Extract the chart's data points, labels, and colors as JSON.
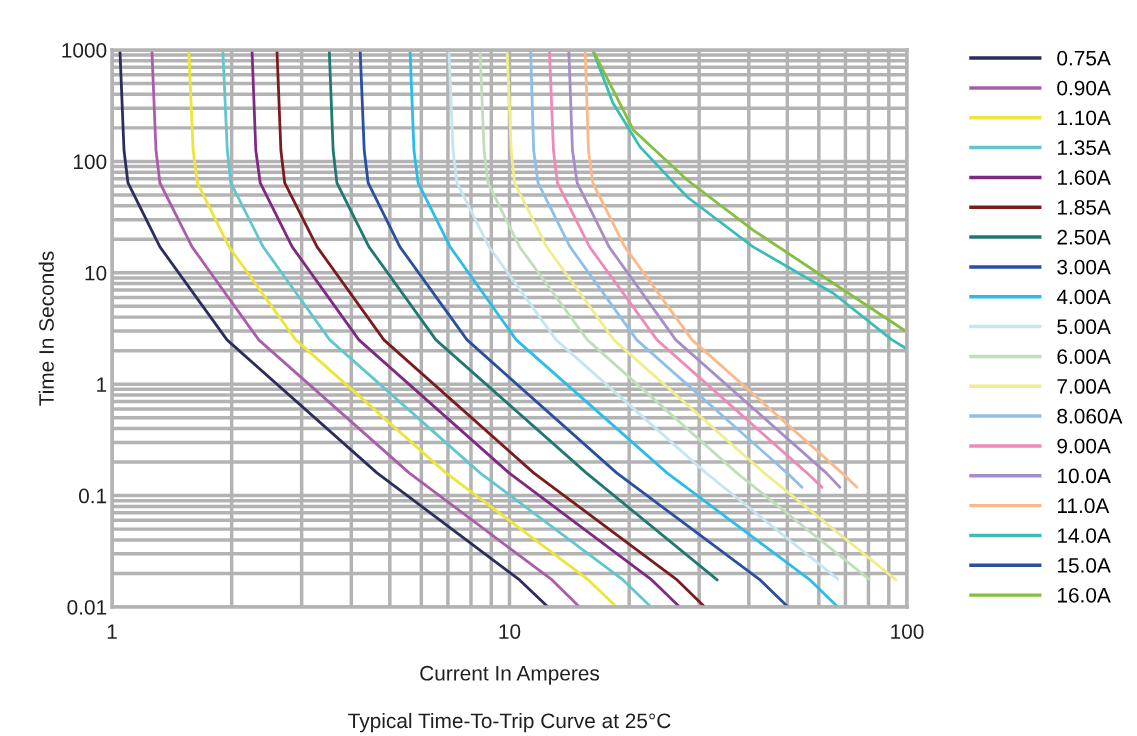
{
  "chart_data": {
    "type": "line",
    "title": "Typical Time-To-Trip Curve at 25°C",
    "xlabel": "Current In Amperes",
    "ylabel": "Time In Seconds",
    "log": "xy",
    "grid": true,
    "legend": "right",
    "marker": "none",
    "line_style": "solid",
    "xlim": [
      1,
      100
    ],
    "xticks": [
      1,
      10,
      100
    ],
    "ylim": [
      0.01,
      1000
    ],
    "yticks": [
      0.01,
      0.1,
      1,
      10,
      100,
      1000
    ],
    "series": [
      {
        "name": "0.75A",
        "color": "#2b2d5e",
        "x": [
          1.047,
          1.072,
          1.097,
          1.32,
          1.947,
          4.64,
          10.6,
          12.5
        ],
        "values": [
          1000,
          126,
          64,
          17.1,
          2.5,
          0.16,
          0.0175,
          0.01
        ]
      },
      {
        "name": "0.90A",
        "color": "#a95dab",
        "x": [
          1.26,
          1.29,
          1.32,
          1.59,
          2.34,
          5.59,
          12.8,
          15.0
        ],
        "values": [
          1000,
          126,
          64,
          17.1,
          2.5,
          0.16,
          0.0175,
          0.01
        ]
      },
      {
        "name": "1.10A",
        "color": "#ede53a",
        "x": [
          1.56,
          1.6,
          1.64,
          1.97,
          2.9,
          6.92,
          15.8,
          18.6
        ],
        "values": [
          1000,
          126,
          64,
          17.1,
          2.5,
          0.16,
          0.0175,
          0.01
        ]
      },
      {
        "name": "1.35A",
        "color": "#62c6cf",
        "x": [
          1.9,
          1.95,
          1.99,
          2.4,
          3.53,
          8.43,
          19.3,
          22.7
        ],
        "values": [
          1000,
          126,
          64,
          17.1,
          2.5,
          0.16,
          0.0175,
          0.01
        ]
      },
      {
        "name": "1.60A",
        "color": "#7f2a82",
        "x": [
          2.25,
          2.3,
          2.36,
          2.84,
          4.18,
          9.97,
          22.8,
          26.8
        ],
        "values": [
          1000,
          126,
          64,
          17.1,
          2.5,
          0.16,
          0.0175,
          0.01
        ]
      },
      {
        "name": "1.85A",
        "color": "#7a1c1f",
        "x": [
          2.6,
          2.66,
          2.72,
          3.28,
          4.83,
          11.5,
          26.4,
          31.0
        ],
        "values": [
          1000,
          126,
          64,
          17.1,
          2.5,
          0.16,
          0.0175,
          0.01
        ]
      },
      {
        "name": "2.50A",
        "color": "#21786f",
        "x": [
          3.52,
          3.6,
          3.68,
          4.43,
          6.53,
          15.6,
          33.3
        ],
        "values": [
          1000,
          126,
          64,
          17.1,
          2.5,
          0.16,
          0.0175
        ]
      },
      {
        "name": "3.00A",
        "color": "#2a4fa0",
        "x": [
          4.21,
          4.31,
          4.41,
          5.3,
          7.82,
          18.6,
          42.7,
          50.2
        ],
        "values": [
          1000,
          126,
          64,
          17.1,
          2.5,
          0.16,
          0.0175,
          0.01
        ]
      },
      {
        "name": "4.00A",
        "color": "#2bbde9",
        "x": [
          5.62,
          5.75,
          5.89,
          7.09,
          10.4,
          24.9,
          57.0,
          67.0
        ],
        "values": [
          1000,
          126,
          64,
          17.1,
          2.5,
          0.16,
          0.0175,
          0.01
        ]
      },
      {
        "name": "5.00A",
        "color": "#c5e6ee",
        "x": [
          7.04,
          7.21,
          7.38,
          8.88,
          13.1,
          31.2,
          67.0
        ],
        "values": [
          1000,
          126,
          64,
          17.1,
          2.5,
          0.16,
          0.0178
        ]
      },
      {
        "name": "6.00A",
        "color": "#bfdfb9",
        "x": [
          8.43,
          8.63,
          8.83,
          10.6,
          15.7,
          37.3,
          80.2
        ],
        "values": [
          1000,
          126,
          64,
          17.1,
          2.5,
          0.16,
          0.0178
        ]
      },
      {
        "name": "7.00A",
        "color": "#eeee8e",
        "x": [
          9.86,
          10.1,
          10.3,
          12.4,
          18.3,
          43.7,
          93.8
        ],
        "values": [
          1000,
          126,
          64,
          17.1,
          2.5,
          0.16,
          0.0175
        ]
      },
      {
        "name": "8.060A",
        "color": "#8dbfe8",
        "x": [
          11.3,
          11.5,
          11.8,
          14.2,
          20.9,
          49.9,
          54.4
        ],
        "values": [
          1000,
          126,
          64,
          17.1,
          2.5,
          0.16,
          0.119
        ]
      },
      {
        "name": "9.00A",
        "color": "#ee8ab8",
        "x": [
          12.6,
          12.9,
          13.2,
          15.9,
          23.5,
          56.0,
          61.1
        ],
        "values": [
          1000,
          126,
          64,
          17.1,
          2.5,
          0.16,
          0.119
        ]
      },
      {
        "name": "10.0A",
        "color": "#a58ec5",
        "x": [
          14.1,
          14.4,
          14.8,
          17.8,
          26.2,
          62.6,
          67.8
        ],
        "values": [
          1000,
          126,
          64,
          17.1,
          2.5,
          0.16,
          0.119
        ]
      },
      {
        "name": "11.0A",
        "color": "#f9b98a",
        "x": [
          15.5,
          15.8,
          16.2,
          19.5,
          28.8,
          68.6,
          74.8
        ],
        "values": [
          1000,
          126,
          64,
          17.1,
          2.5,
          0.16,
          0.119
        ]
      },
      {
        "name": "14.0A",
        "color": "#3bbdb7",
        "x": [
          16.2,
          18.2,
          21.3,
          28.0,
          41.0,
          65.1,
          91.7,
          100
        ],
        "values": [
          1000,
          334,
          135,
          47.9,
          17.1,
          6.59,
          2.5,
          2.07
        ]
      },
      {
        "name": "15.0A",
        "color": "#2a4fa0"
      },
      {
        "name": "16.0A",
        "color": "#84bf3e",
        "x": [
          16.2,
          20.5,
          28.0,
          41.0,
          65.1,
          100
        ],
        "values": [
          1000,
          191,
          68.1,
          24.2,
          8.1,
          2.94
        ]
      }
    ]
  }
}
